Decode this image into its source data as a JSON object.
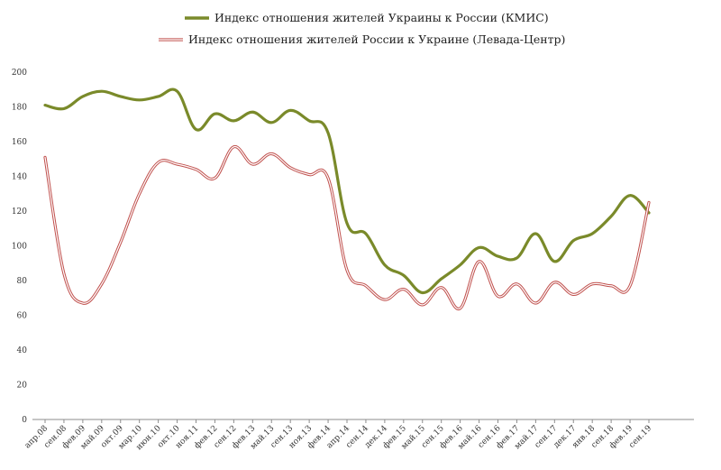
{
  "chart_data": {
    "type": "line",
    "categories": [
      "апр.08",
      "сен.08",
      "фев.09",
      "май.09",
      "окт.09",
      "мар.10",
      "июн.10",
      "окт.10",
      "ноя.11",
      "фев.12",
      "сен.12",
      "фев.13",
      "май.13",
      "сен.13",
      "ноя.13",
      "фев.14",
      "апр.14",
      "сен.14",
      "дек.14",
      "фев.15",
      "май.15",
      "сен.15",
      "фев.16",
      "май.16",
      "сен.16",
      "фев.17",
      "май.17",
      "сен.17",
      "дек.17",
      "янв.18",
      "сен.18",
      "фев.19",
      "сен.19"
    ],
    "y_ticks": [
      "0",
      "20",
      "40",
      "60",
      "80",
      "100",
      "120",
      "140",
      "160",
      "180",
      "200"
    ],
    "ylim": [
      0,
      200
    ],
    "grid": false,
    "legend_position": "top",
    "series": [
      {
        "name": "Индекс отношения жителей Украины к России (КМИС)",
        "color": "#7a8a2a",
        "values": [
          181,
          179,
          186,
          189,
          186,
          184,
          186,
          189,
          167,
          176,
          172,
          177,
          171,
          178,
          172,
          165,
          113,
          107,
          89,
          83,
          73,
          81,
          89,
          99,
          94,
          93,
          107,
          91,
          103,
          107,
          117,
          129,
          119
        ]
      },
      {
        "name": "Индекс отношения жителей России к Украине (Левада-Центр)",
        "color": "#c0504d",
        "values": [
          151,
          84,
          67,
          78,
          102,
          130,
          148,
          147,
          144,
          139,
          157,
          147,
          153,
          145,
          141,
          139,
          86,
          77,
          69,
          75,
          66,
          76,
          64,
          91,
          71,
          78,
          67,
          79,
          72,
          78,
          77,
          77,
          125
        ]
      }
    ]
  }
}
